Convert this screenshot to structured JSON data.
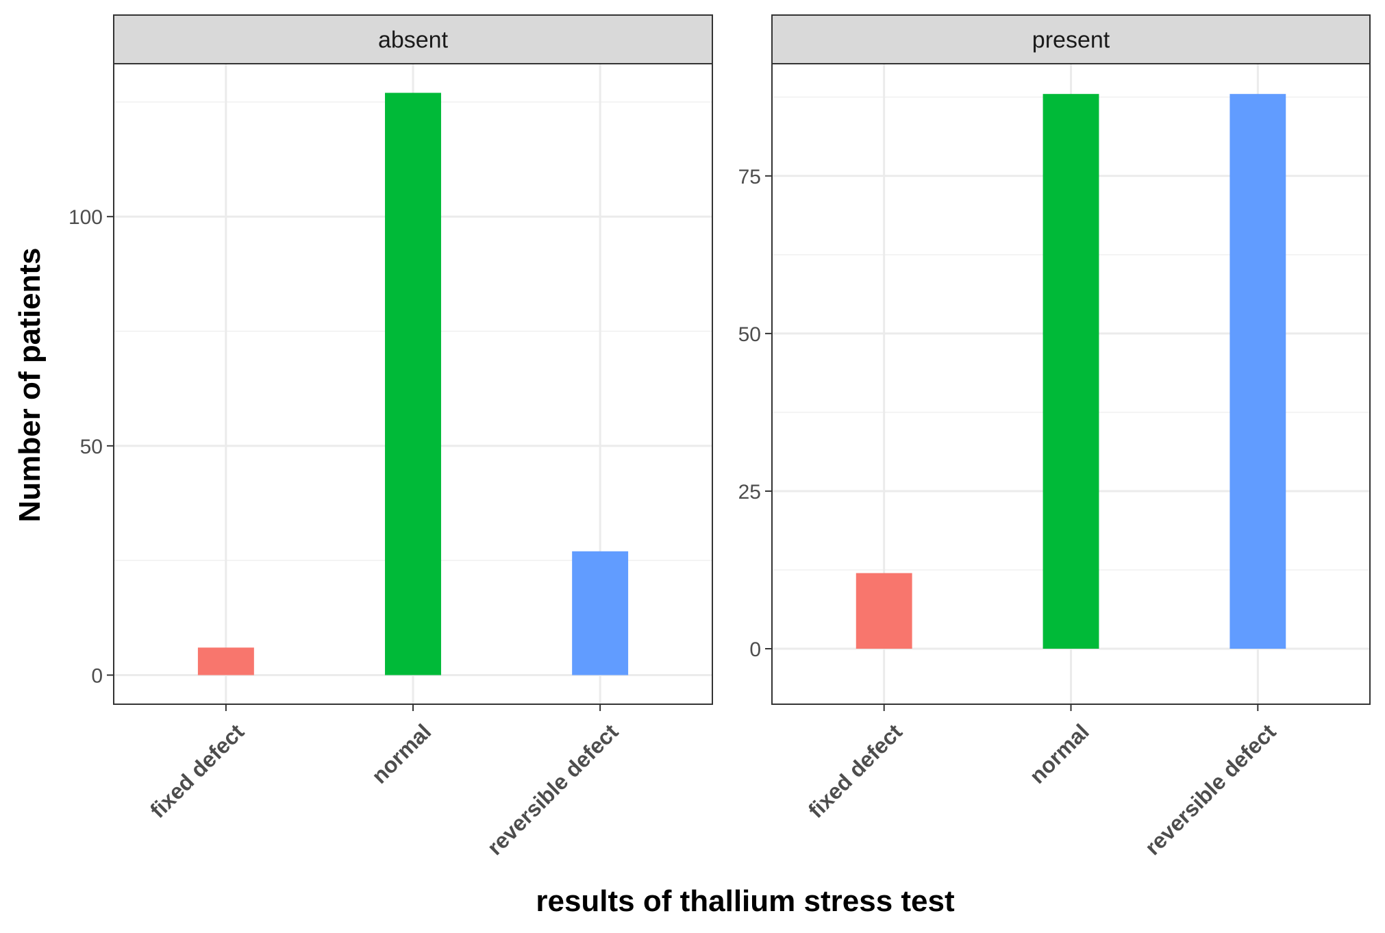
{
  "chart_data": {
    "type": "bar",
    "xlabel": "results of thallium stress test",
    "ylabel": "Number of patients",
    "categories": [
      "fixed defect",
      "normal",
      "reversible defect"
    ],
    "colors": [
      "#F8766D",
      "#00BA38",
      "#619CFF"
    ],
    "grid": true,
    "legend": "none",
    "facets": [
      {
        "label": "absent",
        "values": [
          6,
          127,
          27
        ],
        "ylim": [
          -6.35,
          133.35
        ],
        "yticks": [
          0,
          50,
          100
        ]
      },
      {
        "label": "present",
        "values": [
          12,
          88,
          88
        ],
        "ylim": [
          -8.8,
          92.8
        ],
        "yticks": [
          0,
          25,
          50,
          75
        ]
      }
    ]
  }
}
